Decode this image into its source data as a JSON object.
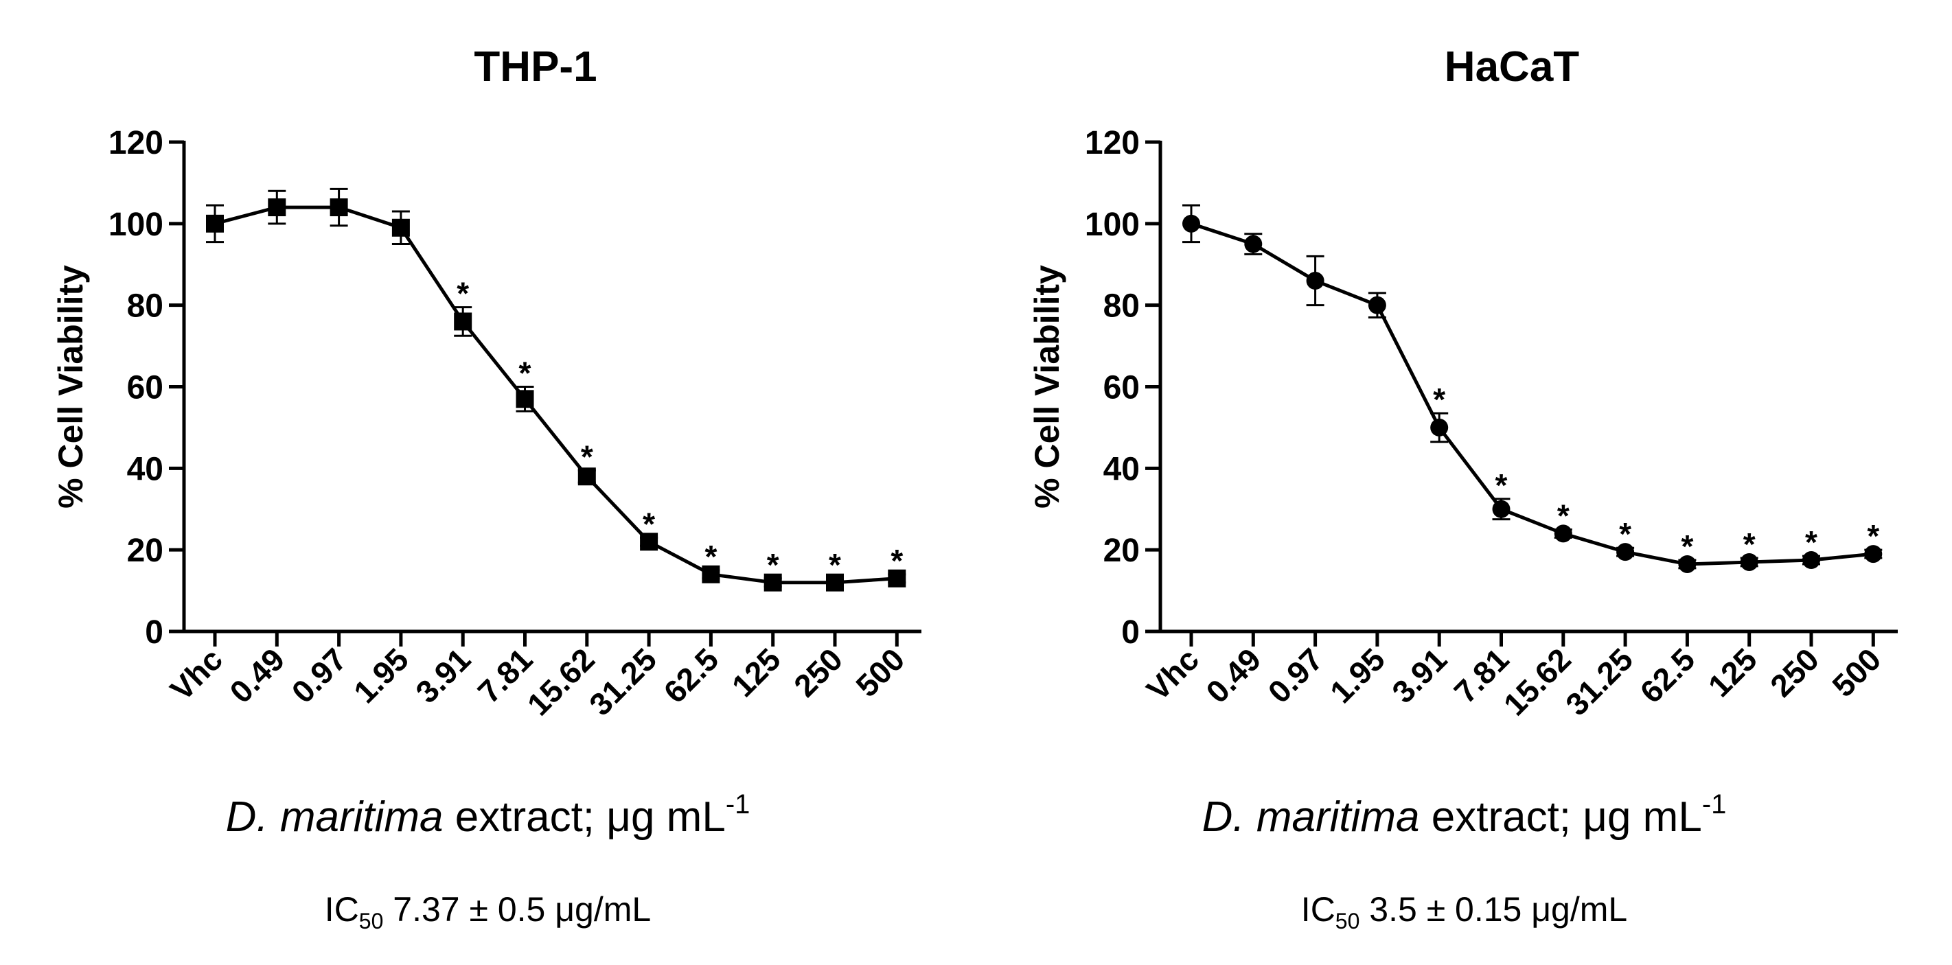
{
  "chart_data": [
    {
      "type": "line",
      "title": "THP-1",
      "xlabel_italic": "D. maritima",
      "xlabel_rest": "extract; μg mL",
      "xlabel_sup": "-1",
      "ylabel": "% Cell Viability",
      "ylim": [
        0,
        120
      ],
      "yticks": [
        0,
        20,
        40,
        60,
        80,
        100,
        120
      ],
      "categories": [
        "Vhc",
        "0.49",
        "0.97",
        "1.95",
        "3.91",
        "7.81",
        "15.62",
        "31.25",
        "62.5",
        "125",
        "250",
        "500"
      ],
      "marker": "square",
      "values": [
        100,
        104,
        104,
        99,
        76,
        57,
        38,
        22,
        14,
        12,
        12,
        13
      ],
      "errors": [
        4.5,
        4.0,
        4.5,
        4.0,
        3.5,
        3.0,
        1.5,
        1.0,
        1.0,
        1.0,
        1.0,
        1.0
      ],
      "significant": [
        false,
        false,
        false,
        false,
        true,
        true,
        true,
        true,
        true,
        true,
        true,
        true
      ],
      "significance_mark": "*",
      "ic50_prefix": "IC",
      "ic50_sub": "50",
      "ic50_value": "7.37 ± 0.5 μg/mL"
    },
    {
      "type": "line",
      "title": "HaCaT",
      "xlabel_italic": "D. maritima",
      "xlabel_rest": "extract; μg mL",
      "xlabel_sup": "-1",
      "ylabel": "% Cell Viability",
      "ylim": [
        0,
        120
      ],
      "yticks": [
        0,
        20,
        40,
        60,
        80,
        100,
        120
      ],
      "categories": [
        "Vhc",
        "0.49",
        "0.97",
        "1.95",
        "3.91",
        "7.81",
        "15.62",
        "31.25",
        "62.5",
        "125",
        "250",
        "500"
      ],
      "marker": "circle",
      "values": [
        100,
        95,
        86,
        80,
        50,
        30,
        24,
        19.5,
        16.5,
        17,
        17.5,
        19
      ],
      "errors": [
        4.5,
        2.5,
        6.0,
        3.0,
        3.5,
        2.5,
        1.0,
        1.0,
        1.0,
        1.0,
        1.0,
        1.0
      ],
      "significant": [
        false,
        false,
        false,
        false,
        true,
        true,
        true,
        true,
        true,
        true,
        true,
        true
      ],
      "significance_mark": "*",
      "ic50_prefix": "IC",
      "ic50_sub": "50",
      "ic50_value": "3.5 ± 0.15 μg/mL"
    }
  ]
}
